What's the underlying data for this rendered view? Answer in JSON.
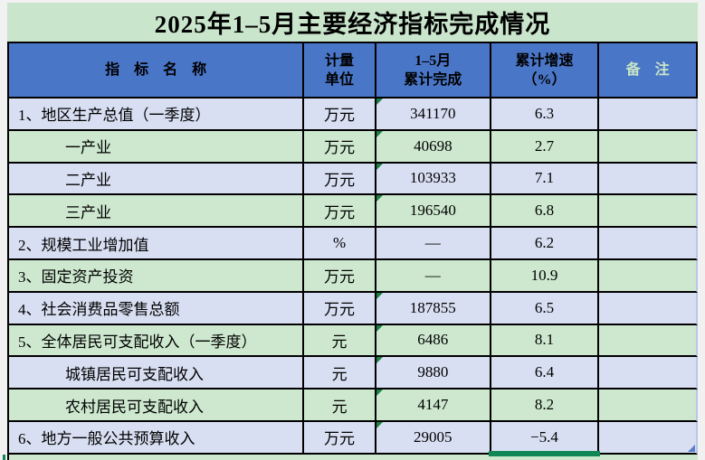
{
  "title": "2025年1–5月主要经济指标完成情况",
  "header": {
    "indicator": "指　标　名　称",
    "unit_line1": "计量",
    "unit_line2": "单位",
    "value_line1": "1–5月",
    "value_line2": "累计完成",
    "growth_line1": "累计增速",
    "growth_line2": "（%）",
    "remark": "备　注"
  },
  "rows": [
    {
      "indicator": "1、地区生产总值（一季度）",
      "unit": "万元",
      "value": "341170",
      "growth": "6.3",
      "remark": "",
      "indent": false,
      "flag": true
    },
    {
      "indicator": "一产业",
      "unit": "万元",
      "value": "40698",
      "growth": "2.7",
      "remark": "",
      "indent": true,
      "flag": true
    },
    {
      "indicator": "二产业",
      "unit": "万元",
      "value": "103933",
      "growth": "7.1",
      "remark": "",
      "indent": true,
      "flag": true
    },
    {
      "indicator": "三产业",
      "unit": "万元",
      "value": "196540",
      "growth": "6.8",
      "remark": "",
      "indent": true,
      "flag": true
    },
    {
      "indicator": "2、规模工业增加值",
      "unit": "%",
      "value": "—",
      "growth": "6.2",
      "remark": "",
      "indent": false,
      "flag": false
    },
    {
      "indicator": "3、固定资产投资",
      "unit": "万元",
      "value": "—",
      "growth": "10.9",
      "remark": "",
      "indent": false,
      "flag": false
    },
    {
      "indicator": "4、社会消费品零售总额",
      "unit": "万元",
      "value": "187855",
      "growth": "6.5",
      "remark": "",
      "indent": false,
      "flag": true
    },
    {
      "indicator": "5、全体居民可支配收入（一季度）",
      "unit": "元",
      "value": "6486",
      "growth": "8.1",
      "remark": "",
      "indent": false,
      "flag": true
    },
    {
      "indicator": "城镇居民可支配收入",
      "unit": "元",
      "value": "9880",
      "growth": "6.4",
      "remark": "",
      "indent": true,
      "flag": true
    },
    {
      "indicator": "农村居民可支配收入",
      "unit": "元",
      "value": "4147",
      "growth": "8.2",
      "remark": "",
      "indent": true,
      "flag": true
    },
    {
      "indicator": "6、地方一般公共预算收入",
      "unit": "万元",
      "value": "29005",
      "growth": "−5.4",
      "remark": "",
      "indent": false,
      "flag": true
    }
  ],
  "selection": {
    "row_index": 10,
    "column": "growth"
  },
  "colors": {
    "title_bg": "#c9e5cc",
    "header_bg": "#4a76c8",
    "header_text": "#000000",
    "remark_header_text": "#c8e4c6",
    "row_blue": "#d8dff2",
    "row_green": "#cde8cf",
    "border": "#000000",
    "selection_green": "#108756",
    "flag_green": "#1c8044",
    "corner_blue": "#5b7ec9"
  }
}
